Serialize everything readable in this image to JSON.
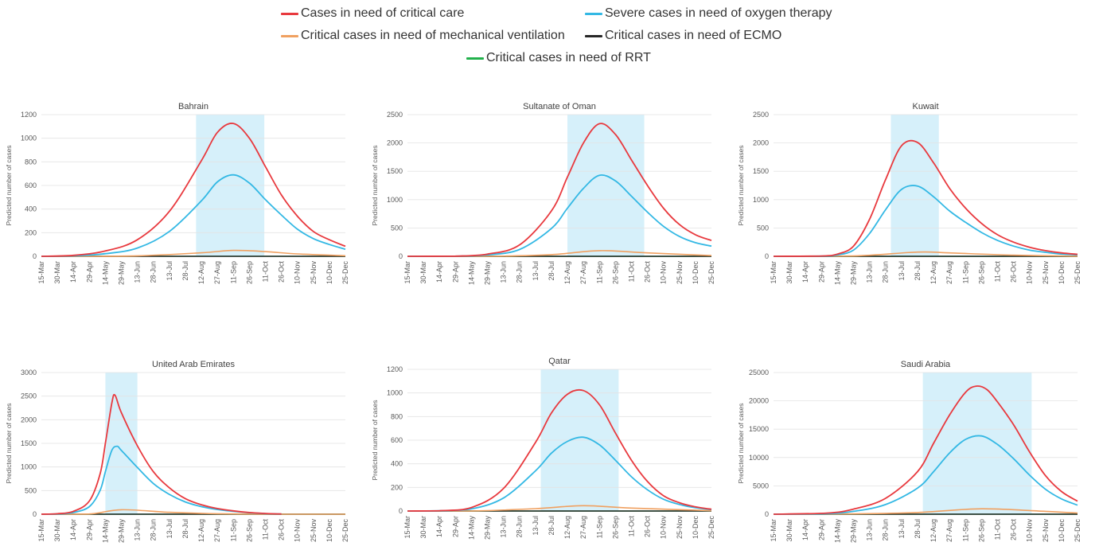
{
  "legend": {
    "items": [
      {
        "label": "Cases in need of critical care",
        "color": "#e8393e"
      },
      {
        "label": "Severe cases in need of oxygen therapy",
        "color": "#33b8e4"
      },
      {
        "label": "Critical cases in need of mechanical ventilation",
        "color": "#f0a060"
      },
      {
        "label": "Critical cases in need of ECMO",
        "color": "#262626"
      },
      {
        "label": "Critical cases in need of RRT",
        "color": "#22b14c"
      }
    ]
  },
  "chart_data": [
    {
      "type": "line",
      "title": "Bahrain",
      "ylabel": "Predicted number of cases",
      "x_tick_labels": [
        "15-Mar",
        "30-Mar",
        "14-Apr",
        "29-Apr",
        "14-May",
        "29-May",
        "13-Jun",
        "28-Jun",
        "13-Jul",
        "28-Jul",
        "12-Aug",
        "27-Aug",
        "11-Sep",
        "26-Sep",
        "11-Oct",
        "26-Oct",
        "10-Nov",
        "25-Nov",
        "10-Dec",
        "25-Dec"
      ],
      "x_range": [
        "2020-03-15",
        "2020-12-25"
      ],
      "ylim": [
        0,
        1200
      ],
      "y_ticks": [
        0,
        200,
        400,
        600,
        800,
        1000,
        1200
      ],
      "highlight": [
        "2020-08-07",
        "2020-10-10"
      ],
      "series": [
        {
          "name": "Cases in need of critical care",
          "x": [
            "2020-04-14",
            "2020-05-14",
            "2020-06-13",
            "2020-07-13",
            "2020-08-12",
            "2020-08-27",
            "2020-09-11",
            "2020-09-26",
            "2020-10-11",
            "2020-10-26",
            "2020-11-10",
            "2020-11-25",
            "2020-12-10",
            "2020-12-25"
          ],
          "y": [
            8,
            45,
            140,
            380,
            810,
            1050,
            1125,
            1000,
            760,
            520,
            340,
            210,
            140,
            85
          ]
        },
        {
          "name": "Severe cases in need of oxygen therapy",
          "x": [
            "2020-04-14",
            "2020-05-14",
            "2020-06-13",
            "2020-07-13",
            "2020-08-12",
            "2020-08-27",
            "2020-09-11",
            "2020-09-26",
            "2020-10-11",
            "2020-10-26",
            "2020-11-10",
            "2020-11-25",
            "2020-12-10",
            "2020-12-25"
          ],
          "y": [
            4,
            22,
            70,
            210,
            470,
            630,
            690,
            620,
            480,
            350,
            230,
            150,
            100,
            60
          ]
        },
        {
          "name": "Critical cases in need of mechanical ventilation",
          "x": [
            "2020-04-14",
            "2020-06-13",
            "2020-08-12",
            "2020-09-11",
            "2020-10-11",
            "2020-11-10",
            "2020-12-25"
          ],
          "y": [
            0,
            4,
            30,
            50,
            40,
            20,
            5
          ]
        },
        {
          "name": "Critical cases in need of ECMO",
          "x": [
            "2020-03-15",
            "2020-12-25"
          ],
          "y": [
            0,
            0
          ]
        },
        {
          "name": "Critical cases in need of RRT",
          "x": [
            "2020-03-15",
            "2020-09-11",
            "2020-12-25"
          ],
          "y": [
            0,
            1,
            0
          ]
        }
      ]
    },
    {
      "type": "line",
      "title": "Sultanate of Oman",
      "ylabel": "Predicted number of cases",
      "x_tick_labels": [
        "15-Mar",
        "30-Mar",
        "14-Apr",
        "29-Apr",
        "14-May",
        "29-May",
        "13-Jun",
        "28-Jun",
        "13-Jul",
        "28-Jul",
        "12-Aug",
        "27-Aug",
        "11-Sep",
        "26-Sep",
        "11-Oct",
        "26-Oct",
        "10-Nov",
        "25-Nov",
        "10-Dec",
        "25-Dec"
      ],
      "x_range": [
        "2020-03-15",
        "2020-12-25"
      ],
      "ylim": [
        0,
        2500
      ],
      "y_ticks": [
        0,
        500,
        1000,
        1500,
        2000,
        2500
      ],
      "highlight": [
        "2020-08-12",
        "2020-10-23"
      ],
      "series": [
        {
          "name": "Cases in need of critical care",
          "x": [
            "2020-04-29",
            "2020-05-29",
            "2020-06-28",
            "2020-07-28",
            "2020-08-12",
            "2020-08-27",
            "2020-09-11",
            "2020-09-26",
            "2020-10-11",
            "2020-10-26",
            "2020-11-10",
            "2020-11-25",
            "2020-12-10",
            "2020-12-25"
          ],
          "y": [
            3,
            40,
            200,
            800,
            1400,
            2000,
            2340,
            2150,
            1700,
            1250,
            850,
            560,
            380,
            280
          ]
        },
        {
          "name": "Severe cases in need of oxygen therapy",
          "x": [
            "2020-04-29",
            "2020-05-29",
            "2020-06-28",
            "2020-07-28",
            "2020-08-12",
            "2020-08-27",
            "2020-09-11",
            "2020-09-26",
            "2020-10-11",
            "2020-10-26",
            "2020-11-10",
            "2020-11-25",
            "2020-12-10",
            "2020-12-25"
          ],
          "y": [
            2,
            25,
            120,
            490,
            850,
            1200,
            1430,
            1330,
            1060,
            780,
            530,
            350,
            240,
            180
          ]
        },
        {
          "name": "Critical cases in need of mechanical ventilation",
          "x": [
            "2020-05-29",
            "2020-07-28",
            "2020-09-11",
            "2020-10-26",
            "2020-12-25"
          ],
          "y": [
            0,
            30,
            100,
            60,
            12
          ]
        },
        {
          "name": "Critical cases in need of ECMO",
          "x": [
            "2020-03-15",
            "2020-12-25"
          ],
          "y": [
            0,
            0
          ]
        },
        {
          "name": "Critical cases in need of RRT",
          "x": [
            "2020-03-15",
            "2020-12-25"
          ],
          "y": [
            0,
            0
          ]
        }
      ]
    },
    {
      "type": "line",
      "title": "Kuwait",
      "ylabel": "Predicted number of cases",
      "x_tick_labels": [
        "15-Mar",
        "30-Mar",
        "14-Apr",
        "29-Apr",
        "14-May",
        "29-May",
        "13-Jun",
        "28-Jun",
        "13-Jul",
        "28-Jul",
        "12-Aug",
        "27-Aug",
        "11-Sep",
        "26-Sep",
        "11-Oct",
        "26-Oct",
        "10-Nov",
        "25-Nov",
        "10-Dec",
        "25-Dec"
      ],
      "x_range": [
        "2020-03-15",
        "2020-12-25"
      ],
      "ylim": [
        0,
        2500
      ],
      "y_ticks": [
        0,
        500,
        1000,
        1500,
        2000,
        2500
      ],
      "highlight": [
        "2020-07-03",
        "2020-08-17"
      ],
      "series": [
        {
          "name": "Cases in need of critical care",
          "x": [
            "2020-04-29",
            "2020-05-14",
            "2020-05-29",
            "2020-06-13",
            "2020-06-28",
            "2020-07-13",
            "2020-07-28",
            "2020-08-12",
            "2020-08-27",
            "2020-09-11",
            "2020-09-26",
            "2020-10-11",
            "2020-10-26",
            "2020-11-10",
            "2020-11-25",
            "2020-12-10",
            "2020-12-25"
          ],
          "y": [
            5,
            40,
            180,
            650,
            1350,
            1950,
            2010,
            1650,
            1200,
            850,
            580,
            380,
            250,
            160,
            100,
            60,
            35
          ]
        },
        {
          "name": "Severe cases in need of oxygen therapy",
          "x": [
            "2020-04-29",
            "2020-05-14",
            "2020-05-29",
            "2020-06-13",
            "2020-06-28",
            "2020-07-13",
            "2020-07-28",
            "2020-08-12",
            "2020-08-27",
            "2020-09-11",
            "2020-09-26",
            "2020-10-11",
            "2020-10-26",
            "2020-11-10",
            "2020-11-25",
            "2020-12-10",
            "2020-12-25"
          ],
          "y": [
            3,
            25,
            110,
            400,
            820,
            1180,
            1240,
            1050,
            800,
            600,
            420,
            280,
            180,
            110,
            70,
            40,
            25
          ]
        },
        {
          "name": "Critical cases in need of mechanical ventilation",
          "x": [
            "2020-05-29",
            "2020-07-28",
            "2020-08-27",
            "2020-10-26",
            "2020-12-25"
          ],
          "y": [
            5,
            75,
            60,
            20,
            3
          ]
        },
        {
          "name": "Critical cases in need of ECMO",
          "x": [
            "2020-03-15",
            "2020-12-25"
          ],
          "y": [
            0,
            0
          ]
        },
        {
          "name": "Critical cases in need of RRT",
          "x": [
            "2020-03-15",
            "2020-12-25"
          ],
          "y": [
            0,
            0
          ]
        }
      ]
    },
    {
      "type": "line",
      "title": "United Arab Emirates",
      "ylabel": "Predicted number of cases",
      "x_tick_labels": [
        "15-Mar",
        "30-Mar",
        "14-Apr",
        "29-Apr",
        "14-May",
        "29-May",
        "13-Jun",
        "28-Jun",
        "13-Jul",
        "28-Jul",
        "12-Aug",
        "27-Aug",
        "11-Sep",
        "26-Sep",
        "11-Oct",
        "26-Oct",
        "10-Nov",
        "25-Nov",
        "10-Dec",
        "25-Dec"
      ],
      "x_range": [
        "2020-03-15",
        "2020-12-25"
      ],
      "ylim": [
        0,
        3000
      ],
      "y_ticks": [
        0,
        500,
        1000,
        1500,
        2000,
        2500,
        3000
      ],
      "highlight": [
        "2020-05-14",
        "2020-06-13"
      ],
      "series": [
        {
          "name": "Cases in need of critical care",
          "x": [
            "2020-03-30",
            "2020-04-14",
            "2020-04-29",
            "2020-05-09",
            "2020-05-14",
            "2020-05-20",
            "2020-05-23",
            "2020-05-29",
            "2020-06-13",
            "2020-06-28",
            "2020-07-13",
            "2020-07-28",
            "2020-08-12",
            "2020-08-27",
            "2020-09-11",
            "2020-09-26",
            "2020-10-11",
            "2020-10-26"
          ],
          "y": [
            10,
            60,
            280,
            850,
            1500,
            2350,
            2520,
            2150,
            1450,
            900,
            560,
            330,
            200,
            120,
            70,
            35,
            15,
            5
          ]
        },
        {
          "name": "Severe cases in need of oxygen therapy",
          "x": [
            "2020-03-30",
            "2020-04-14",
            "2020-04-29",
            "2020-05-09",
            "2020-05-14",
            "2020-05-20",
            "2020-05-25",
            "2020-05-29",
            "2020-06-13",
            "2020-06-28",
            "2020-07-13",
            "2020-07-28",
            "2020-08-12",
            "2020-08-27",
            "2020-09-11",
            "2020-09-26",
            "2020-10-11",
            "2020-10-26"
          ],
          "y": [
            5,
            35,
            160,
            500,
            900,
            1350,
            1440,
            1350,
            990,
            650,
            420,
            260,
            160,
            100,
            60,
            30,
            12,
            4
          ]
        },
        {
          "name": "Critical cases in need of mechanical ventilation",
          "x": [
            "2020-04-29",
            "2020-05-29",
            "2020-07-13",
            "2020-08-27",
            "2020-10-26"
          ],
          "y": [
            5,
            95,
            40,
            10,
            0
          ]
        },
        {
          "name": "Critical cases in need of ECMO",
          "x": [
            "2020-03-15",
            "2020-12-25"
          ],
          "y": [
            0,
            0
          ]
        },
        {
          "name": "Critical cases in need of RRT",
          "x": [
            "2020-03-15",
            "2020-12-25"
          ],
          "y": [
            0,
            0
          ]
        }
      ]
    },
    {
      "type": "line",
      "title": "Qatar",
      "ylabel": "Predicted number of cases",
      "x_tick_labels": [
        "15-Mar",
        "30-Mar",
        "14-Apr",
        "29-Apr",
        "14-May",
        "29-May",
        "13-Jun",
        "28-Jun",
        "13-Jul",
        "28-Jul",
        "12-Aug",
        "27-Aug",
        "11-Sep",
        "26-Sep",
        "11-Oct",
        "26-Oct",
        "10-Nov",
        "25-Nov",
        "10-Dec",
        "25-Dec"
      ],
      "x_range": [
        "2020-03-15",
        "2020-12-25"
      ],
      "ylim": [
        0,
        1200
      ],
      "y_ticks": [
        0,
        200,
        400,
        600,
        800,
        1000,
        1200
      ],
      "highlight": [
        "2020-07-18",
        "2020-09-29"
      ],
      "series": [
        {
          "name": "Cases in need of critical care",
          "x": [
            "2020-04-14",
            "2020-05-14",
            "2020-06-13",
            "2020-07-13",
            "2020-07-28",
            "2020-08-12",
            "2020-08-27",
            "2020-09-11",
            "2020-09-26",
            "2020-10-11",
            "2020-10-26",
            "2020-11-10",
            "2020-11-25",
            "2020-12-10",
            "2020-12-25"
          ],
          "y": [
            3,
            30,
            190,
            580,
            830,
            990,
            1020,
            900,
            660,
            430,
            250,
            130,
            70,
            35,
            15
          ]
        },
        {
          "name": "Severe cases in need of oxygen therapy",
          "x": [
            "2020-04-14",
            "2020-05-14",
            "2020-06-13",
            "2020-07-13",
            "2020-07-28",
            "2020-08-12",
            "2020-08-27",
            "2020-09-11",
            "2020-09-26",
            "2020-10-11",
            "2020-10-26",
            "2020-11-10",
            "2020-11-25",
            "2020-12-10",
            "2020-12-25"
          ],
          "y": [
            2,
            18,
            110,
            340,
            490,
            590,
            625,
            560,
            430,
            290,
            180,
            100,
            55,
            28,
            12
          ]
        },
        {
          "name": "Critical cases in need of mechanical ventilation",
          "x": [
            "2020-05-14",
            "2020-07-13",
            "2020-08-27",
            "2020-10-11",
            "2020-12-25"
          ],
          "y": [
            0,
            20,
            45,
            25,
            3
          ]
        },
        {
          "name": "Critical cases in need of ECMO",
          "x": [
            "2020-03-15",
            "2020-12-25"
          ],
          "y": [
            0,
            0
          ]
        },
        {
          "name": "Critical cases in need of RRT",
          "x": [
            "2020-03-15",
            "2020-12-25"
          ],
          "y": [
            0,
            0
          ]
        }
      ]
    },
    {
      "type": "line",
      "title": "Saudi Arabia",
      "ylabel": "Predicted number of cases",
      "x_tick_labels": [
        "15-Mar",
        "30-Mar",
        "14-Apr",
        "29-Apr",
        "14-May",
        "29-May",
        "13-Jun",
        "28-Jun",
        "13-Jul",
        "28-Jul",
        "12-Aug",
        "27-Aug",
        "11-Sep",
        "26-Sep",
        "11-Oct",
        "26-Oct",
        "10-Nov",
        "25-Nov",
        "10-Dec",
        "25-Dec"
      ],
      "x_range": [
        "2020-03-15",
        "2020-12-25"
      ],
      "ylim": [
        0,
        25000
      ],
      "y_ticks": [
        0,
        5000,
        10000,
        15000,
        20000,
        25000
      ],
      "highlight": [
        "2020-08-02",
        "2020-11-12"
      ],
      "series": [
        {
          "name": "Cases in need of critical care",
          "x": [
            "2020-05-04",
            "2020-05-29",
            "2020-06-28",
            "2020-07-28",
            "2020-08-12",
            "2020-08-27",
            "2020-09-11",
            "2020-09-21",
            "2020-10-01",
            "2020-10-11",
            "2020-10-26",
            "2020-11-10",
            "2020-11-25",
            "2020-12-10",
            "2020-12-25"
          ],
          "y": [
            200,
            900,
            2800,
            7500,
            12500,
            17500,
            21500,
            22600,
            22000,
            19800,
            15800,
            11000,
            6800,
            4000,
            2300
          ]
        },
        {
          "name": "Severe cases in need of oxygen therapy",
          "x": [
            "2020-05-04",
            "2020-05-29",
            "2020-06-28",
            "2020-07-28",
            "2020-08-12",
            "2020-08-27",
            "2020-09-11",
            "2020-09-26",
            "2020-10-11",
            "2020-10-26",
            "2020-11-10",
            "2020-11-25",
            "2020-12-10",
            "2020-12-25"
          ],
          "y": [
            100,
            500,
            1700,
            4600,
            7500,
            10800,
            13200,
            13800,
            12300,
            9800,
            6900,
            4400,
            2700,
            1600
          ]
        },
        {
          "name": "Critical cases in need of mechanical ventilation",
          "x": [
            "2020-05-29",
            "2020-07-28",
            "2020-09-26",
            "2020-11-25",
            "2020-12-25"
          ],
          "y": [
            50,
            300,
            950,
            500,
            200
          ]
        },
        {
          "name": "Critical cases in need of ECMO",
          "x": [
            "2020-03-15",
            "2020-12-25"
          ],
          "y": [
            0,
            0
          ]
        },
        {
          "name": "Critical cases in need of RRT",
          "x": [
            "2020-03-15",
            "2020-12-25"
          ],
          "y": [
            0,
            0
          ]
        }
      ]
    }
  ]
}
